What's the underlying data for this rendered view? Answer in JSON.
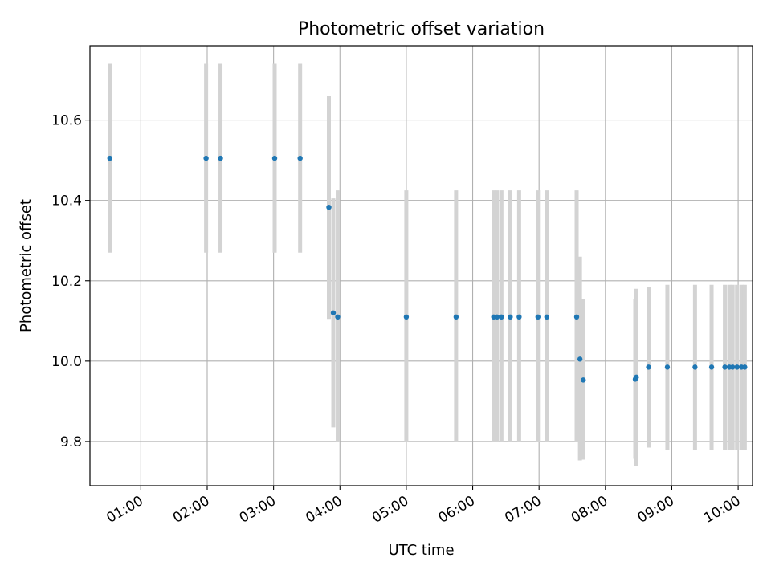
{
  "chart_data": {
    "type": "scatter",
    "title": "Photometric offset variation",
    "xlabel": "UTC time",
    "ylabel": "Photometric offset",
    "xlim": [
      "00:14",
      "10:13"
    ],
    "ylim": [
      9.69,
      10.785
    ],
    "x_ticks": [
      "01:00",
      "02:00",
      "03:00",
      "04:00",
      "05:00",
      "06:00",
      "07:00",
      "08:00",
      "09:00",
      "10:00"
    ],
    "y_ticks": [
      "9.8",
      "10.0",
      "10.2",
      "10.4",
      "10.6"
    ],
    "grid": true,
    "marker_color": "#1f77b4",
    "errorbar_color": "#d3d3d3",
    "series": [
      {
        "points": [
          {
            "x": "00:32",
            "y": 10.505,
            "y_low": 10.27,
            "y_high": 10.74
          },
          {
            "x": "01:59",
            "y": 10.505,
            "y_low": 10.27,
            "y_high": 10.74
          },
          {
            "x": "02:12",
            "y": 10.505,
            "y_low": 10.27,
            "y_high": 10.74
          },
          {
            "x": "03:01",
            "y": 10.505,
            "y_low": 10.27,
            "y_high": 10.74
          },
          {
            "x": "03:24",
            "y": 10.505,
            "y_low": 10.27,
            "y_high": 10.74
          },
          {
            "x": "03:50",
            "y": 10.383,
            "y_low": 10.105,
            "y_high": 10.66
          },
          {
            "x": "03:54",
            "y": 10.12,
            "y_low": 9.835,
            "y_high": 10.405
          },
          {
            "x": "03:58",
            "y": 10.11,
            "y_low": 9.8,
            "y_high": 10.425
          },
          {
            "x": "05:00",
            "y": 10.11,
            "y_low": 9.8,
            "y_high": 10.425
          },
          {
            "x": "05:45",
            "y": 10.11,
            "y_low": 9.8,
            "y_high": 10.425
          },
          {
            "x": "06:19",
            "y": 10.11,
            "y_low": 9.8,
            "y_high": 10.425
          },
          {
            "x": "06:22",
            "y": 10.11,
            "y_low": 9.8,
            "y_high": 10.425
          },
          {
            "x": "06:26",
            "y": 10.11,
            "y_low": 9.8,
            "y_high": 10.425
          },
          {
            "x": "06:34",
            "y": 10.11,
            "y_low": 9.8,
            "y_high": 10.425
          },
          {
            "x": "06:42",
            "y": 10.11,
            "y_low": 9.8,
            "y_high": 10.425
          },
          {
            "x": "06:59",
            "y": 10.11,
            "y_low": 9.8,
            "y_high": 10.425
          },
          {
            "x": "07:07",
            "y": 10.11,
            "y_low": 9.8,
            "y_high": 10.425
          },
          {
            "x": "07:34",
            "y": 10.11,
            "y_low": 9.8,
            "y_high": 10.425
          },
          {
            "x": "07:37",
            "y": 10.005,
            "y_low": 9.753,
            "y_high": 10.26
          },
          {
            "x": "07:40",
            "y": 9.953,
            "y_low": 9.755,
            "y_high": 10.155
          },
          {
            "x": "08:27",
            "y": 9.955,
            "y_low": 9.757,
            "y_high": 10.155
          },
          {
            "x": "08:28",
            "y": 9.96,
            "y_low": 9.74,
            "y_high": 10.18
          },
          {
            "x": "08:39",
            "y": 9.985,
            "y_low": 9.785,
            "y_high": 10.185
          },
          {
            "x": "08:56",
            "y": 9.985,
            "y_low": 9.78,
            "y_high": 10.19
          },
          {
            "x": "09:21",
            "y": 9.985,
            "y_low": 9.78,
            "y_high": 10.19
          },
          {
            "x": "09:36",
            "y": 9.985,
            "y_low": 9.78,
            "y_high": 10.19
          },
          {
            "x": "09:48",
            "y": 9.985,
            "y_low": 9.78,
            "y_high": 10.19
          },
          {
            "x": "09:52",
            "y": 9.985,
            "y_low": 9.78,
            "y_high": 10.19
          },
          {
            "x": "09:55",
            "y": 9.985,
            "y_low": 9.78,
            "y_high": 10.19
          },
          {
            "x": "09:59",
            "y": 9.985,
            "y_low": 9.78,
            "y_high": 10.19
          },
          {
            "x": "10:03",
            "y": 9.985,
            "y_low": 9.78,
            "y_high": 10.19
          },
          {
            "x": "10:06",
            "y": 9.985,
            "y_low": 9.78,
            "y_high": 10.19
          }
        ]
      }
    ]
  }
}
